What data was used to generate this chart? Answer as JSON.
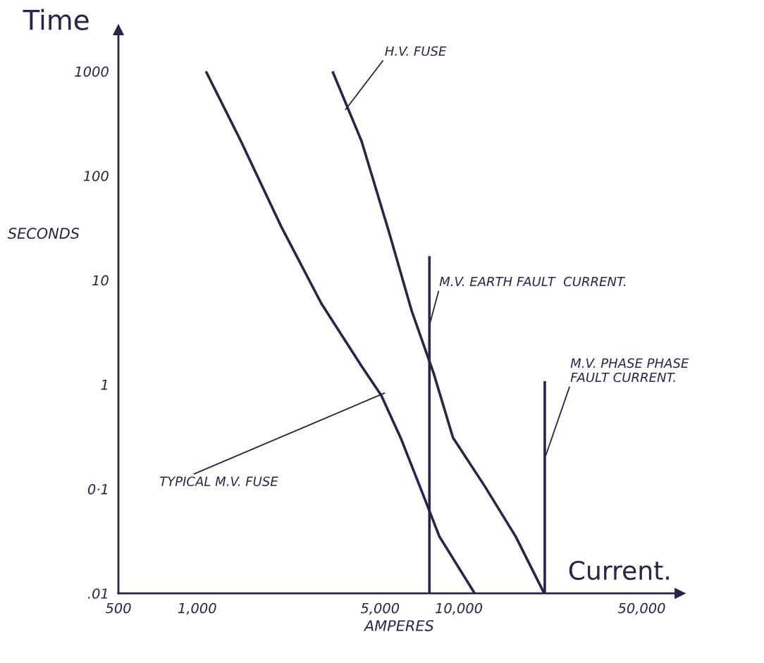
{
  "chart_data": {
    "type": "line",
    "title": "Time",
    "xlabel": "AMPERES",
    "ylabel": "SECONDS",
    "log": "xy",
    "xlim": [
      500,
      70000
    ],
    "xticks": [
      500,
      {
        "value": 1000,
        "label": "1,000"
      },
      {
        "value": 5000,
        "label": "5,000"
      },
      {
        "value": 10000,
        "label": "10,000"
      },
      {
        "value": 50000,
        "label": "50,000"
      }
    ],
    "ylim": [
      0.01,
      2500
    ],
    "yticks": [
      {
        "value": 1000,
        "label": "1000"
      },
      {
        "value": 100,
        "label": "100"
      },
      {
        "value": 10,
        "label": "10"
      },
      {
        "value": 1,
        "label": "1"
      },
      {
        "value": 0.1,
        "label": "0·1"
      },
      {
        "value": 0.01,
        "label": ".01"
      }
    ],
    "grid": false,
    "legend": false,
    "marker": "none",
    "line_style": "solid",
    "series": [
      {
        "color": "#2a2448",
        "x": [
          1080,
          1470,
          2090,
          2980,
          4250,
          5050,
          5990,
          7280,
          8430,
          11500
        ],
        "values": [
          1000,
          214,
          33,
          6.0,
          1.5,
          0.79,
          0.31,
          0.09,
          0.035,
          0.01
        ]
      },
      {
        "color": "#2a2448",
        "x": [
          3290,
          4250,
          5430,
          6600,
          8030,
          9500,
          12600,
          16500,
          21200
        ],
        "values": [
          1000,
          214,
          28,
          5.1,
          1.26,
          0.31,
          0.105,
          0.035,
          0.01
        ]
      },
      {
        "color": "#2a2448",
        "x": [
          7720,
          7720
        ],
        "values": [
          0.01,
          17
        ]
      },
      {
        "color": "#2a2448",
        "x": [
          21300,
          21300
        ],
        "values": [
          0.01,
          1.08
        ]
      }
    ],
    "annotations": [
      {
        "text": "H.V. FUSE",
        "x": 3690,
        "y": 431
      },
      {
        "text": "M.V. EARTH FAULT  CURRENT.",
        "x": 7720,
        "y": 3.7
      },
      {
        "text": "M.V. PHASE PHASE\nFAULT CURRENT.",
        "x": 21500,
        "y": 0.21
      },
      {
        "text": "TYPICAL M.V. FUSE",
        "x": 5200,
        "y": 0.83
      },
      "Current."
    ]
  }
}
